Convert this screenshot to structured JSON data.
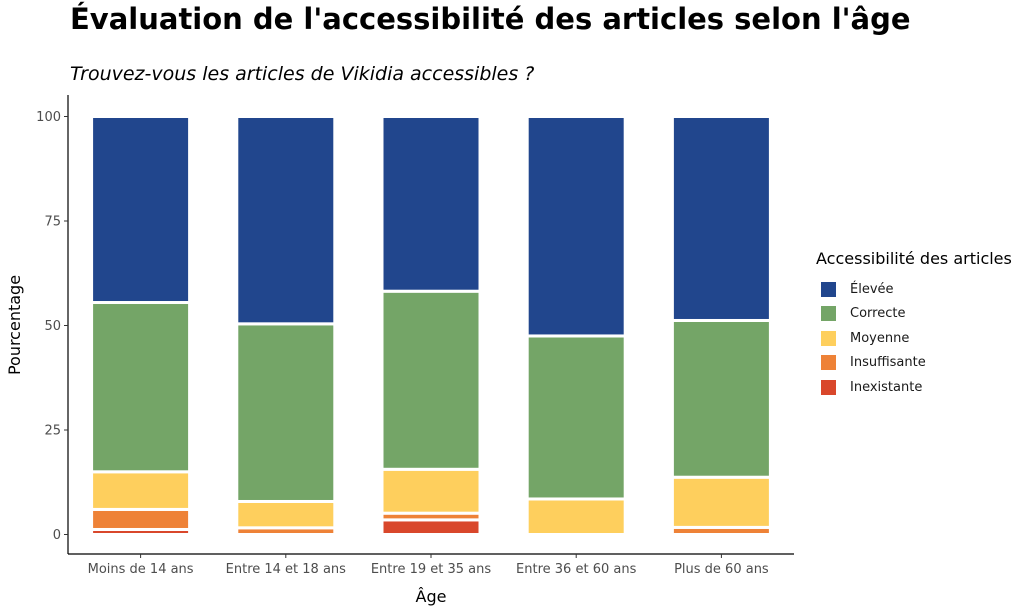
{
  "header": {
    "title": "Évaluation de l'accessibilité des articles selon l'âge",
    "subtitle": "Trouvez-vous les articles de Vikidia accessibles ?"
  },
  "chart_data": {
    "type": "bar",
    "stacked": true,
    "title": "Évaluation de l'accessibilité des articles selon l'âge",
    "subtitle": "Trouvez-vous les articles de Vikidia accessibles ?",
    "xlabel": "Âge",
    "ylabel": "Pourcentage",
    "ylim": [
      0,
      100
    ],
    "yticks": [
      0,
      25,
      50,
      75,
      100
    ],
    "categories": [
      "Moins de 14 ans",
      "Entre 14 et 18 ans",
      "Entre 19 et 35 ans",
      "Entre 36 et 60 ans",
      "Plus de 60 ans"
    ],
    "legend_title": "Accessibilité des articles",
    "legend_position": "right",
    "grid": false,
    "series": [
      {
        "name": "Inexistante",
        "color": "#D9472B",
        "values": [
          1.2,
          0,
          3.5,
          0,
          0
        ]
      },
      {
        "name": "Insuffisante",
        "color": "#EE8237",
        "values": [
          4.8,
          1.6,
          1.6,
          0,
          1.7
        ]
      },
      {
        "name": "Moyenne",
        "color": "#FECF5D",
        "values": [
          9.0,
          6.3,
          10.5,
          8.5,
          12.0
        ]
      },
      {
        "name": "Correcte",
        "color": "#74A567",
        "values": [
          40.5,
          42.5,
          42.6,
          39.0,
          37.5
        ]
      },
      {
        "name": "Élevée",
        "color": "#21468D",
        "values": [
          44.5,
          49.6,
          41.8,
          52.5,
          48.8
        ]
      }
    ],
    "legend_order": [
      "Élevée",
      "Correcte",
      "Moyenne",
      "Insuffisante",
      "Inexistante"
    ]
  }
}
